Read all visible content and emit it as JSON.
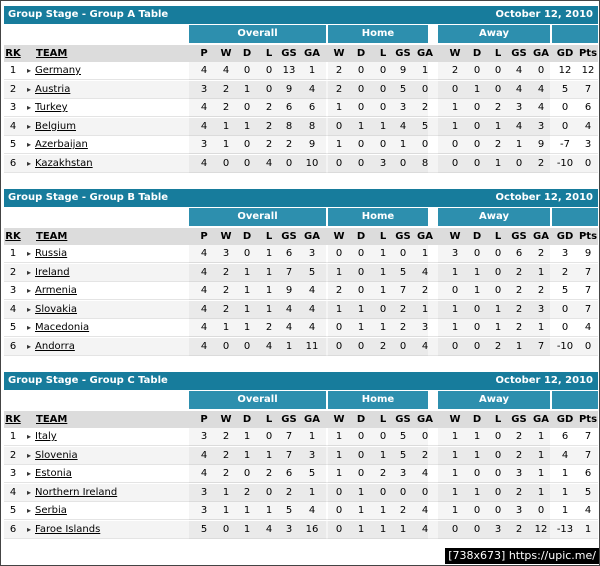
{
  "groups": [
    {
      "title": "Group Stage - Group A Table",
      "date": "October 12, 2010",
      "sections": [
        "Overall",
        "Home",
        "Away"
      ],
      "columns": [
        "RK",
        "TEAM",
        "P",
        "W",
        "D",
        "L",
        "GS",
        "GA",
        "W",
        "D",
        "L",
        "GS",
        "GA",
        "W",
        "D",
        "L",
        "GS",
        "GA",
        "GD",
        "Pts"
      ],
      "rows": [
        [
          1,
          "Germany",
          4,
          4,
          0,
          0,
          13,
          1,
          2,
          0,
          0,
          9,
          1,
          2,
          0,
          0,
          4,
          0,
          12,
          12
        ],
        [
          2,
          "Austria",
          3,
          2,
          1,
          0,
          9,
          4,
          2,
          0,
          0,
          5,
          0,
          0,
          1,
          0,
          4,
          4,
          5,
          7
        ],
        [
          3,
          "Turkey",
          4,
          2,
          0,
          2,
          6,
          6,
          1,
          0,
          0,
          3,
          2,
          1,
          0,
          2,
          3,
          4,
          0,
          6
        ],
        [
          4,
          "Belgium",
          4,
          1,
          1,
          2,
          8,
          8,
          0,
          1,
          1,
          4,
          5,
          1,
          0,
          1,
          4,
          3,
          0,
          4
        ],
        [
          5,
          "Azerbaijan",
          3,
          1,
          0,
          2,
          2,
          9,
          1,
          0,
          0,
          1,
          0,
          0,
          0,
          2,
          1,
          9,
          -7,
          3
        ],
        [
          6,
          "Kazakhstan",
          4,
          0,
          0,
          4,
          0,
          10,
          0,
          0,
          3,
          0,
          8,
          0,
          0,
          1,
          0,
          2,
          -10,
          0
        ]
      ]
    },
    {
      "title": "Group Stage - Group B Table",
      "date": "October 12, 2010",
      "sections": [
        "Overall",
        "Home",
        "Away"
      ],
      "columns": [
        "RK",
        "TEAM",
        "P",
        "W",
        "D",
        "L",
        "GS",
        "GA",
        "W",
        "D",
        "L",
        "GS",
        "GA",
        "W",
        "D",
        "L",
        "GS",
        "GA",
        "GD",
        "Pts"
      ],
      "rows": [
        [
          1,
          "Russia",
          4,
          3,
          0,
          1,
          6,
          3,
          0,
          0,
          1,
          0,
          1,
          3,
          0,
          0,
          6,
          2,
          3,
          9
        ],
        [
          2,
          "Ireland",
          4,
          2,
          1,
          1,
          7,
          5,
          1,
          0,
          1,
          5,
          4,
          1,
          1,
          0,
          2,
          1,
          2,
          7
        ],
        [
          3,
          "Armenia",
          4,
          2,
          1,
          1,
          9,
          4,
          2,
          0,
          1,
          7,
          2,
          0,
          1,
          0,
          2,
          2,
          5,
          7
        ],
        [
          4,
          "Slovakia",
          4,
          2,
          1,
          1,
          4,
          4,
          1,
          1,
          0,
          2,
          1,
          1,
          0,
          1,
          2,
          3,
          0,
          7
        ],
        [
          5,
          "Macedonia",
          4,
          1,
          1,
          2,
          4,
          4,
          0,
          1,
          1,
          2,
          3,
          1,
          0,
          1,
          2,
          1,
          0,
          4
        ],
        [
          6,
          "Andorra",
          4,
          0,
          0,
          4,
          1,
          11,
          0,
          0,
          2,
          0,
          4,
          0,
          0,
          2,
          1,
          7,
          -10,
          0
        ]
      ]
    },
    {
      "title": "Group Stage - Group C Table",
      "date": "October 12, 2010",
      "sections": [
        "Overall",
        "Home",
        "Away"
      ],
      "columns": [
        "RK",
        "TEAM",
        "P",
        "W",
        "D",
        "L",
        "GS",
        "GA",
        "W",
        "D",
        "L",
        "GS",
        "GA",
        "W",
        "D",
        "L",
        "GS",
        "GA",
        "GD",
        "Pts"
      ],
      "rows": [
        [
          1,
          "Italy",
          3,
          2,
          1,
          0,
          7,
          1,
          1,
          0,
          0,
          5,
          0,
          1,
          1,
          0,
          2,
          1,
          6,
          7
        ],
        [
          2,
          "Slovenia",
          4,
          2,
          1,
          1,
          7,
          3,
          1,
          0,
          1,
          5,
          2,
          1,
          1,
          0,
          2,
          1,
          4,
          7
        ],
        [
          3,
          "Estonia",
          4,
          2,
          0,
          2,
          6,
          5,
          1,
          0,
          2,
          3,
          4,
          1,
          0,
          0,
          3,
          1,
          1,
          6
        ],
        [
          4,
          "Northern Ireland",
          3,
          1,
          2,
          0,
          2,
          1,
          0,
          1,
          0,
          0,
          0,
          1,
          1,
          0,
          2,
          1,
          1,
          5
        ],
        [
          5,
          "Serbia",
          3,
          1,
          1,
          1,
          5,
          4,
          0,
          1,
          1,
          2,
          4,
          1,
          0,
          0,
          3,
          0,
          1,
          4
        ],
        [
          6,
          "Faroe Islands",
          5,
          0,
          1,
          4,
          3,
          16,
          0,
          1,
          1,
          1,
          4,
          0,
          0,
          3,
          2,
          12,
          -13,
          1
        ]
      ]
    }
  ],
  "footer": "[738x673] https://upic.me/"
}
